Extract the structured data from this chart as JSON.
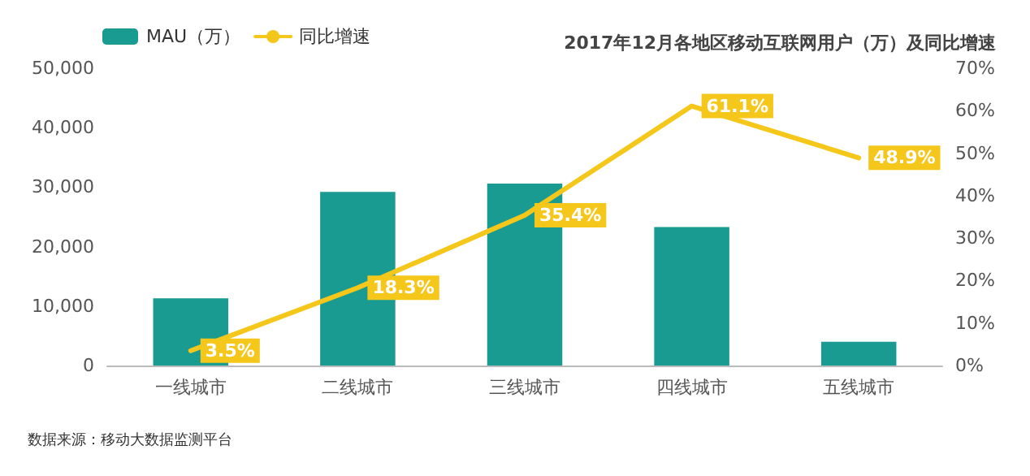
{
  "chart_data": {
    "type": "bar",
    "subtitle": "2017年12月各地区移动互联网用户（万）及同比增速",
    "categories": [
      "一线城市",
      "二线城市",
      "三线城市",
      "四线城市",
      "五线城市"
    ],
    "series": [
      {
        "name": "MAU（万）",
        "type": "bar",
        "color": "#1a9b92",
        "values": [
          11300,
          29200,
          30600,
          23300,
          4000
        ]
      },
      {
        "name": "同比增速",
        "type": "line",
        "axis": "y2",
        "color": "#f5c71a",
        "values": [
          3.5,
          18.3,
          35.4,
          61.1,
          48.9
        ],
        "value_labels": [
          "3.5%",
          "18.3%",
          "35.4%",
          "61.1%",
          "48.9%"
        ]
      }
    ],
    "ylim": [
      0,
      50000
    ],
    "yticks": [
      {
        "value": 0,
        "label": "0"
      },
      {
        "value": 10000,
        "label": "10,000"
      },
      {
        "value": 20000,
        "label": "20,000"
      },
      {
        "value": 30000,
        "label": "30,000"
      },
      {
        "value": 40000,
        "label": "40,000"
      },
      {
        "value": 50000,
        "label": "50,000"
      }
    ],
    "y2lim": [
      0,
      70
    ],
    "y2ticks": [
      {
        "value": 0,
        "label": "0%"
      },
      {
        "value": 10,
        "label": "10%"
      },
      {
        "value": 20,
        "label": "20%"
      },
      {
        "value": 30,
        "label": "30%"
      },
      {
        "value": 40,
        "label": "40%"
      },
      {
        "value": 50,
        "label": "50%"
      },
      {
        "value": 60,
        "label": "60%"
      },
      {
        "value": 70,
        "label": "70%"
      }
    ],
    "annotations": [
      "数据来源：移动大数据监测平台"
    ],
    "legend": "top left",
    "grid": false,
    "marker": "none"
  }
}
